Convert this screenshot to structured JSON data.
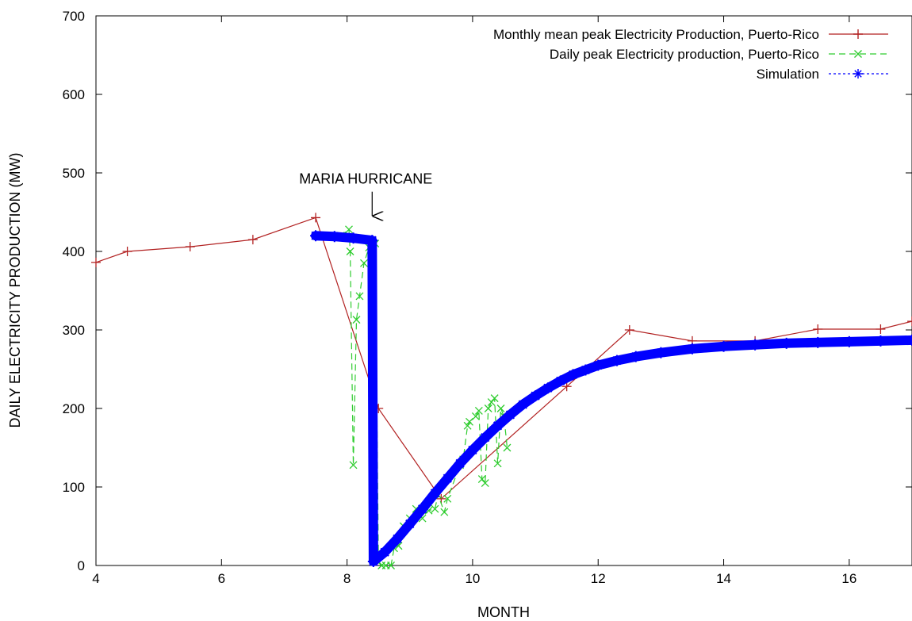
{
  "chart_data": {
    "type": "line",
    "xlabel": "MONTH",
    "ylabel": "DAILY ELECTRICITY PRODUCTION (MW)",
    "xlim": [
      4,
      17
    ],
    "ylim": [
      0,
      700
    ],
    "xticks": [
      4,
      6,
      8,
      10,
      12,
      14,
      16
    ],
    "yticks": [
      0,
      100,
      200,
      300,
      400,
      500,
      600,
      700
    ],
    "grid": false,
    "legend_position": "top-right",
    "annotation": {
      "text": "MARIA HURRICANE",
      "x": 8.4,
      "y_from": 470,
      "y_to": 443
    },
    "series": [
      {
        "name": "Monthly mean peak Electricity Production, Puerto-Rico",
        "color": "#b22222",
        "line_style": "solid",
        "marker": "plus",
        "points": [
          [
            4.0,
            386
          ],
          [
            4.5,
            400
          ],
          [
            5.5,
            406
          ],
          [
            6.5,
            415
          ],
          [
            7.5,
            443
          ],
          [
            8.5,
            200
          ],
          [
            9.5,
            85
          ],
          [
            11.5,
            228
          ],
          [
            12.5,
            300
          ],
          [
            13.5,
            286
          ],
          [
            14.5,
            286
          ],
          [
            15.5,
            301
          ],
          [
            16.5,
            301
          ],
          [
            17.0,
            311
          ]
        ]
      },
      {
        "name": "Daily peak Electricity production, Puerto-Rico",
        "color": "#2ecc2e",
        "line_style": "dashed",
        "marker": "x",
        "points": [
          [
            7.9,
            420
          ],
          [
            8.03,
            428
          ],
          [
            8.05,
            400
          ],
          [
            8.1,
            128
          ],
          [
            8.15,
            313
          ],
          [
            8.2,
            343
          ],
          [
            8.27,
            385
          ],
          [
            8.35,
            405
          ],
          [
            8.4,
            408
          ],
          [
            8.45,
            410
          ],
          [
            8.5,
            5
          ],
          [
            8.55,
            0
          ],
          [
            8.62,
            0
          ],
          [
            8.7,
            0
          ],
          [
            8.75,
            22
          ],
          [
            8.82,
            25
          ],
          [
            8.9,
            50
          ],
          [
            9.0,
            60
          ],
          [
            9.1,
            72
          ],
          [
            9.2,
            60
          ],
          [
            9.3,
            70
          ],
          [
            9.4,
            72
          ],
          [
            9.45,
            90
          ],
          [
            9.55,
            68
          ],
          [
            9.6,
            85
          ],
          [
            9.8,
            128
          ],
          [
            9.85,
            135
          ],
          [
            9.92,
            178
          ],
          [
            9.95,
            183
          ],
          [
            10.05,
            190
          ],
          [
            10.1,
            197
          ],
          [
            10.15,
            110
          ],
          [
            10.2,
            105
          ],
          [
            10.25,
            200
          ],
          [
            10.3,
            208
          ],
          [
            10.35,
            213
          ],
          [
            10.4,
            130
          ],
          [
            10.45,
            200
          ],
          [
            10.5,
            190
          ],
          [
            10.55,
            150
          ]
        ]
      },
      {
        "name": "Simulation",
        "color": "#0000ff",
        "line_style": "dotted",
        "marker": "asterisk",
        "points": [
          [
            7.5,
            420
          ],
          [
            7.8,
            419
          ],
          [
            8.1,
            417
          ],
          [
            8.4,
            414
          ],
          [
            8.42,
            5
          ],
          [
            8.6,
            17
          ],
          [
            8.8,
            34
          ],
          [
            9.0,
            53
          ],
          [
            9.2,
            72
          ],
          [
            9.4,
            92
          ],
          [
            9.6,
            111
          ],
          [
            9.8,
            130
          ],
          [
            10.0,
            147
          ],
          [
            10.2,
            163
          ],
          [
            10.4,
            178
          ],
          [
            10.6,
            192
          ],
          [
            10.8,
            205
          ],
          [
            11.0,
            216
          ],
          [
            11.2,
            226
          ],
          [
            11.4,
            235
          ],
          [
            11.6,
            243
          ],
          [
            11.8,
            249
          ],
          [
            12.0,
            255
          ],
          [
            12.3,
            261
          ],
          [
            12.6,
            266
          ],
          [
            13.0,
            271
          ],
          [
            13.5,
            276
          ],
          [
            14.0,
            279
          ],
          [
            14.5,
            281
          ],
          [
            15.0,
            283
          ],
          [
            15.5,
            284
          ],
          [
            16.0,
            285
          ],
          [
            16.5,
            286
          ],
          [
            17.0,
            287
          ]
        ]
      }
    ]
  }
}
